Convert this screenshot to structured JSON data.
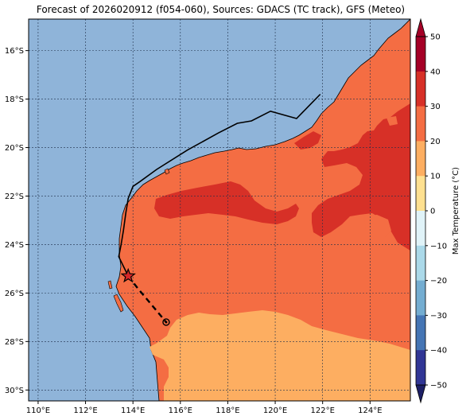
{
  "title": "Forecast of 2026020912 (f054-060), Sources: GDACS (TC track), GFS (Meteo)",
  "map": {
    "lon_range": [
      109.6,
      125.7
    ],
    "lat_range": [
      -30.45,
      -14.7
    ],
    "lon_ticks": [
      "110°E",
      "112°E",
      "114°E",
      "116°E",
      "118°E",
      "120°E",
      "122°E",
      "124°E"
    ],
    "lat_ticks": [
      "16°S",
      "18°S",
      "20°S",
      "22°S",
      "24°S",
      "26°S",
      "28°S",
      "30°S"
    ],
    "grid": true,
    "ocean_color": "#8fb4d9",
    "zones": [
      {
        "name": "Max Temperature 20 to 30 °C",
        "color": "#f46d43"
      },
      {
        "name": "Max Temperature 30 to 40 °C",
        "color": "#d73027"
      },
      {
        "name": "Max Temperature 10 to 20 °C",
        "color": "#fdae61"
      }
    ],
    "track_past": [
      [
        121.9,
        -17.8
      ],
      [
        120.9,
        -18.8
      ],
      [
        119.8,
        -18.5
      ],
      [
        119.0,
        -18.9
      ],
      [
        118.4,
        -19.0
      ],
      [
        117.6,
        -19.4
      ],
      [
        116.3,
        -20.1
      ],
      [
        115.0,
        -20.9
      ],
      [
        114.3,
        -21.4
      ],
      [
        114.0,
        -21.6
      ],
      [
        113.8,
        -22.1
      ],
      [
        113.7,
        -22.7
      ],
      [
        113.6,
        -23.4
      ],
      [
        113.5,
        -24.0
      ],
      [
        113.4,
        -24.5
      ],
      [
        113.8,
        -25.3
      ]
    ],
    "track_forecast": [
      [
        113.8,
        -25.3
      ],
      [
        114.2,
        -25.8
      ],
      [
        114.8,
        -26.5
      ],
      [
        115.4,
        -27.2
      ]
    ],
    "current_position": [
      113.8,
      -25.3
    ],
    "forecast_position": [
      115.4,
      -27.2
    ]
  },
  "colorbar": {
    "label": "Max Temperature (°C)",
    "ticks": [
      "50",
      "40",
      "30",
      "20",
      "10",
      "0",
      "−10",
      "−20",
      "−30",
      "−40",
      "−50"
    ],
    "colors": [
      "#a50026",
      "#d73027",
      "#f46d43",
      "#fdae61",
      "#fee090",
      "#ffffbf",
      "#e0f3f8",
      "#abd9e9",
      "#74add1",
      "#4575b4",
      "#313695"
    ]
  }
}
